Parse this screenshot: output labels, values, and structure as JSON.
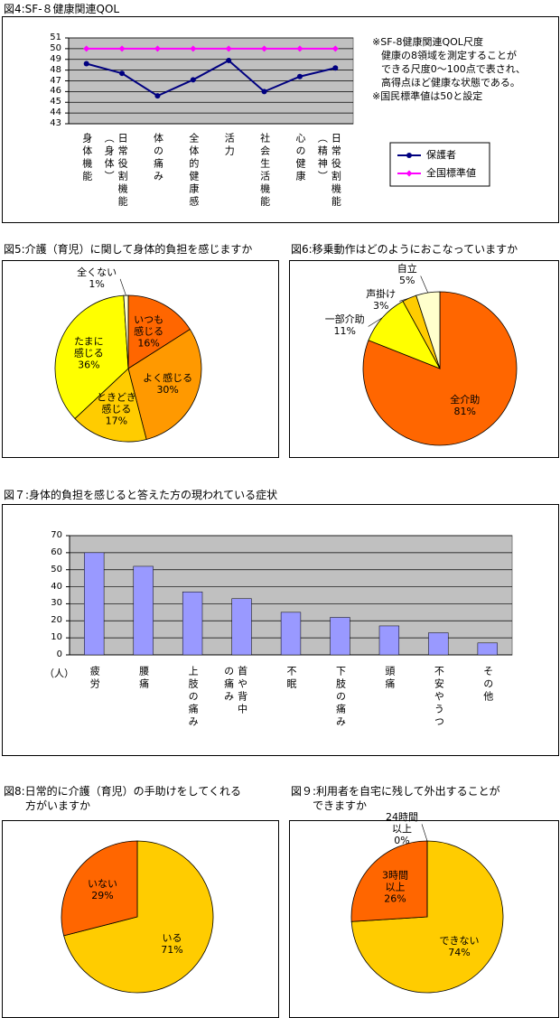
{
  "chart_data": [
    {
      "type": "line",
      "title": "図4:SF-８健康関連QOL",
      "categories": [
        "身体機能",
        "日常役割機能\n（身体）",
        "体の痛み",
        "全体的健康感",
        "活力",
        "社会生活機能",
        "心の健康",
        "日常役割機能\n（精神）"
      ],
      "series": [
        {
          "name": "保護者",
          "color": "#000080",
          "marker": "circle",
          "values": [
            48.6,
            47.7,
            45.6,
            47.1,
            48.9,
            46.0,
            47.4,
            48.2
          ]
        },
        {
          "name": "全国標準値",
          "color": "#ff00ff",
          "marker": "diamond",
          "values": [
            50,
            50,
            50,
            50,
            50,
            50,
            50,
            50
          ]
        }
      ],
      "ylim": [
        43,
        51
      ],
      "yticks": [
        43,
        44,
        45,
        46,
        47,
        48,
        49,
        50,
        51
      ],
      "grid": true,
      "notes": [
        "※SF-8健康関連QOL尺度",
        "健康の8領域を測定することが",
        "できる尺度0～100点で表され、",
        "高得点ほど健康な状態である。",
        "※国民標準値は50と設定"
      ]
    },
    {
      "type": "pie",
      "title": "図5:介護（育児）に関して身体的負担を感じますか",
      "categories": [
        "いつも\n感じる",
        "よく感じる",
        "ときどき\n感じる",
        "たまに\n感じる",
        "全くない"
      ],
      "values": [
        16,
        30,
        17,
        36,
        1
      ],
      "value_labels": [
        "16%",
        "30%",
        "17%",
        "36%",
        "1%"
      ],
      "colors": [
        "#ff6600",
        "#ff9900",
        "#ffcc00",
        "#ffff00",
        "#ffffcc"
      ]
    },
    {
      "type": "pie",
      "title": "図6:移乗動作はどのようにおこなっていますか",
      "categories": [
        "全介助",
        "一部介助",
        "声掛け",
        "自立"
      ],
      "values": [
        81,
        11,
        3,
        5
      ],
      "value_labels": [
        "81%",
        "11%",
        "3%",
        "5%"
      ],
      "colors": [
        "#ff6600",
        "#ffff00",
        "#ffcc00",
        "#ffffcc"
      ]
    },
    {
      "type": "bar",
      "title": "図７:身体的負担を感じると答えた方の現われている症状",
      "y_label": "（人）",
      "categories": [
        "疲労",
        "腰痛",
        "上肢の痛み",
        "首や背中\nの痛み",
        "不眠",
        "下肢の痛み",
        "頭痛",
        "不安やうつ",
        "その他"
      ],
      "values": [
        60,
        52,
        37,
        33,
        25,
        22,
        17,
        13,
        7
      ],
      "color": "#9999ff",
      "ylim": [
        0,
        70
      ],
      "yticks": [
        0,
        10,
        20,
        30,
        40,
        50,
        60,
        70
      ],
      "grid": true
    },
    {
      "type": "pie",
      "title": "図8:日常的に介護（育児）の手助けをしてくれる\n方がいますか",
      "categories": [
        "いる",
        "いない"
      ],
      "values": [
        71,
        29
      ],
      "value_labels": [
        "71%",
        "29%"
      ],
      "colors": [
        "#ffcc00",
        "#ff6600"
      ]
    },
    {
      "type": "pie",
      "title": "図９:利用者を自宅に残して外出することが\nできますか",
      "categories": [
        "できない",
        "3時間\n以上",
        "24時間\n以上"
      ],
      "values": [
        74,
        26,
        0
      ],
      "value_labels": [
        "74%",
        "26%",
        "0%"
      ],
      "colors": [
        "#ffcc00",
        "#ff6600",
        "#ffffcc"
      ]
    }
  ]
}
